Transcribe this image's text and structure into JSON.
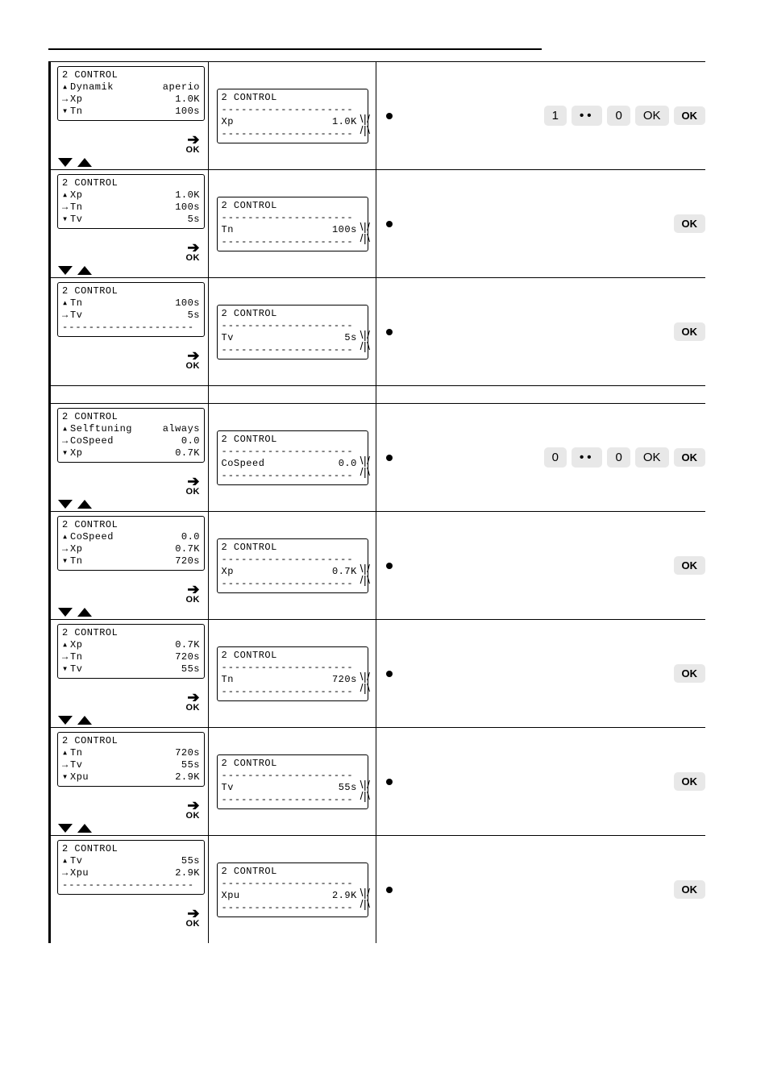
{
  "colors": {
    "key_bg": "#e8e8e8",
    "border": "#000000",
    "bg": "#ffffff"
  },
  "glyphs": {
    "up": "▴",
    "down": "▾",
    "right": "→",
    "dash": "--------------------",
    "edit_up": "\\|/",
    "edit_dn": "/|\\",
    "arrow": "➔",
    "ok": "OK",
    "dotdot": "··"
  },
  "rows": [
    {
      "left": {
        "title": "2 CONTROL",
        "lines": [
          {
            "m": "▴",
            "l": "Dynamik",
            "v": "aperio"
          },
          {
            "m": "→",
            "l": "Xp",
            "v": "1.0K"
          },
          {
            "m": "▾",
            "l": "Tn",
            "v": "100s"
          }
        ],
        "tri": true
      },
      "mid": {
        "title": "2 CONTROL",
        "param": "Xp",
        "val": "1.0K"
      },
      "right": {
        "keys": [
          "1",
          "··",
          "0",
          "OK"
        ],
        "ok": true
      }
    },
    {
      "left": {
        "title": "2 CONTROL",
        "lines": [
          {
            "m": "▴",
            "l": "Xp",
            "v": "1.0K"
          },
          {
            "m": "→",
            "l": "Tn",
            "v": "100s"
          },
          {
            "m": "▾",
            "l": "Tv",
            "v": "5s"
          }
        ],
        "tri": true
      },
      "mid": {
        "title": "2 CONTROL",
        "param": "Tn",
        "val": "100s"
      },
      "right": {
        "keys": [],
        "ok": true
      }
    },
    {
      "left": {
        "title": "2 CONTROL",
        "lines": [
          {
            "m": "▴",
            "l": "Tn",
            "v": "100s"
          },
          {
            "m": "→",
            "l": "Tv",
            "v": "5s"
          },
          {
            "m": "",
            "l": "",
            "v": "",
            "dash": true
          }
        ],
        "tri": false
      },
      "mid": {
        "title": "2 CONTROL",
        "param": "Tv",
        "val": "5s"
      },
      "right": {
        "keys": [],
        "ok": true
      }
    },
    {
      "spacer": true
    },
    {
      "left": {
        "title": "2 CONTROL",
        "lines": [
          {
            "m": "▴",
            "l": "Selftuning",
            "v": "always"
          },
          {
            "m": "→",
            "l": "CoSpeed",
            "v": "0.0"
          },
          {
            "m": "▾",
            "l": "Xp",
            "v": "0.7K"
          }
        ],
        "tri": true
      },
      "mid": {
        "title": "2 CONTROL",
        "param": "CoSpeed",
        "val": "0.0"
      },
      "right": {
        "keys": [
          "0",
          "··",
          "0",
          "OK"
        ],
        "ok": true
      }
    },
    {
      "left": {
        "title": "2 CONTROL",
        "lines": [
          {
            "m": "▴",
            "l": "CoSpeed",
            "v": "0.0"
          },
          {
            "m": "→",
            "l": "Xp",
            "v": "0.7K"
          },
          {
            "m": "▾",
            "l": "Tn",
            "v": "720s"
          }
        ],
        "tri": true
      },
      "mid": {
        "title": "2 CONTROL",
        "param": "Xp",
        "val": "0.7K"
      },
      "right": {
        "keys": [],
        "ok": true
      }
    },
    {
      "left": {
        "title": "2 CONTROL",
        "lines": [
          {
            "m": "▴",
            "l": "Xp",
            "v": "0.7K"
          },
          {
            "m": "→",
            "l": "Tn",
            "v": "720s"
          },
          {
            "m": "▾",
            "l": "Tv",
            "v": "55s"
          }
        ],
        "tri": true
      },
      "mid": {
        "title": "2 CONTROL",
        "param": "Tn",
        "val": "720s"
      },
      "right": {
        "keys": [],
        "ok": true
      }
    },
    {
      "left": {
        "title": "2 CONTROL",
        "lines": [
          {
            "m": "▴",
            "l": "Tn",
            "v": "720s"
          },
          {
            "m": "→",
            "l": "Tv",
            "v": "55s"
          },
          {
            "m": "▾",
            "l": "Xpu",
            "v": "2.9K"
          }
        ],
        "tri": true
      },
      "mid": {
        "title": "2 CONTROL",
        "param": "Tv",
        "val": "55s"
      },
      "right": {
        "keys": [],
        "ok": true
      }
    },
    {
      "left": {
        "title": "2 CONTROL",
        "lines": [
          {
            "m": "▴",
            "l": "Tv",
            "v": "55s"
          },
          {
            "m": "→",
            "l": "Xpu",
            "v": "2.9K"
          },
          {
            "m": "",
            "l": "",
            "v": "",
            "dash": true
          }
        ],
        "tri": false
      },
      "mid": {
        "title": "2 CONTROL",
        "param": "Xpu",
        "val": "2.9K"
      },
      "right": {
        "keys": [],
        "ok": true
      }
    }
  ]
}
